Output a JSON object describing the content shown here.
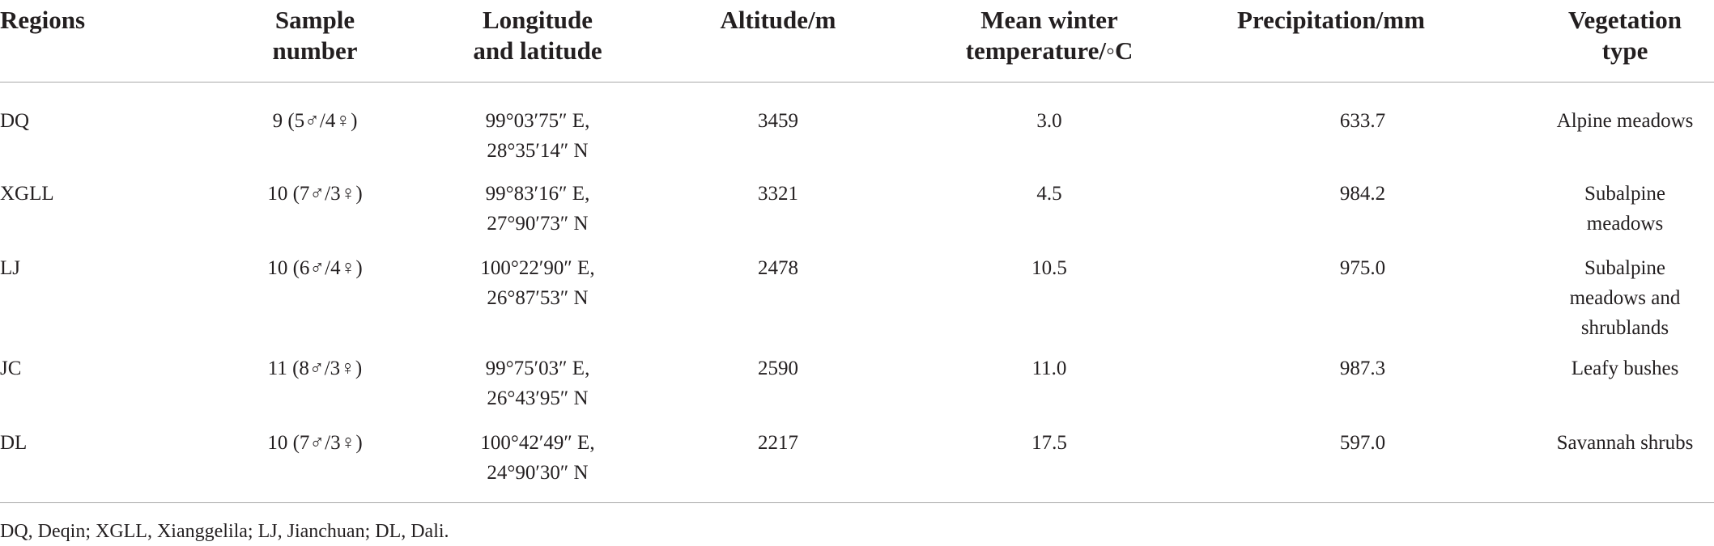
{
  "table": {
    "header": [
      [
        "Regions"
      ],
      [
        "Sample",
        "number"
      ],
      [
        "Longitude",
        "and latitude"
      ],
      [
        "Altitude/m"
      ],
      [
        "Mean winter",
        "temperature/◦C"
      ],
      [
        "Precipitation/mm"
      ],
      [
        "Vegetation",
        "type"
      ]
    ],
    "rows": [
      [
        [
          "DQ"
        ],
        [
          "9 (5♂/4♀)"
        ],
        [
          "99°03′75″ E,",
          "28°35′14″ N"
        ],
        [
          "3459"
        ],
        [
          "3.0"
        ],
        [
          "633.7"
        ],
        [
          "Alpine meadows"
        ]
      ],
      [
        [
          "XGLL"
        ],
        [
          "10 (7♂/3♀)"
        ],
        [
          "99°83′16″ E,",
          "27°90′73″ N"
        ],
        [
          "3321"
        ],
        [
          "4.5"
        ],
        [
          "984.2"
        ],
        [
          "Subalpine",
          "meadows"
        ]
      ],
      [
        [
          "LJ"
        ],
        [
          "10 (6♂/4♀)"
        ],
        [
          "100°22′90″ E,",
          "26°87′53″ N"
        ],
        [
          "2478"
        ],
        [
          "10.5"
        ],
        [
          "975.0"
        ],
        [
          "Subalpine",
          "meadows and",
          "shrublands"
        ]
      ],
      [
        [
          "JC"
        ],
        [
          "11 (8♂/3♀)"
        ],
        [
          "99°75′03″ E,",
          "26°43′95″ N"
        ],
        [
          "2590"
        ],
        [
          "11.0"
        ],
        [
          "987.3"
        ],
        [
          "Leafy bushes"
        ]
      ],
      [
        [
          "DL"
        ],
        [
          "10 (7♂/3♀)"
        ],
        [
          "100°42′49″ E,",
          "24°90′30″ N"
        ],
        [
          "2217"
        ],
        [
          "17.5"
        ],
        [
          "597.0"
        ],
        [
          "Savannah shrubs"
        ]
      ]
    ],
    "footnote": "DQ, Deqin; XGLL, Xianggelila; LJ, Jianchuan; DL, Dali."
  }
}
